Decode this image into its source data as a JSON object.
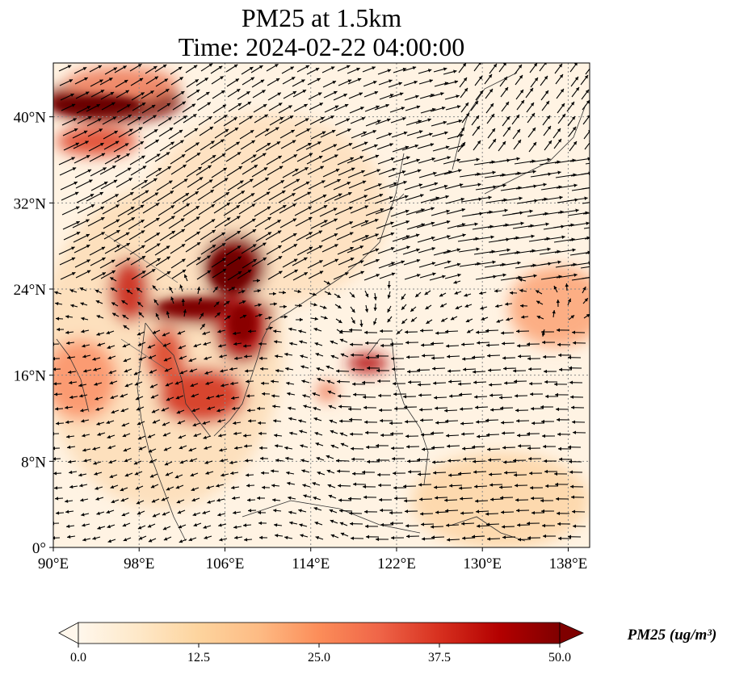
{
  "title": {
    "line1": "PM25 at 1.5km",
    "line2": "Time: 2024-02-22 04:00:00"
  },
  "map": {
    "lon_range": [
      90,
      140
    ],
    "lat_range": [
      0,
      45
    ],
    "x_ticks": [
      "90°E",
      "98°E",
      "106°E",
      "114°E",
      "122°E",
      "130°E",
      "138°E"
    ],
    "y_ticks": [
      "0°",
      "8°N",
      "16°N",
      "24°N",
      "32°N",
      "40°N"
    ],
    "x_tick_values": [
      90,
      98,
      106,
      114,
      122,
      130,
      138
    ],
    "y_tick_values": [
      0,
      8,
      16,
      24,
      32,
      40
    ],
    "gridlines": "dotted",
    "field": "PM25",
    "vectors": "wind arrows"
  },
  "colorbar": {
    "label": "PM25 (ug/m³)",
    "min": 0.0,
    "max": 50.0,
    "tick_labels": [
      "0.0",
      "12.5",
      "25.0",
      "37.5",
      "50.0"
    ],
    "extend": "both",
    "colormap": "OrRd",
    "colors": [
      "#fff7ec",
      "#fee8c8",
      "#fdd49e",
      "#fdbb84",
      "#fc8d59",
      "#ef6548",
      "#d7301f",
      "#b30000",
      "#7f0000"
    ]
  },
  "colors": {
    "coastline": "#333333",
    "arrow": "#000000",
    "grid": "#888888"
  }
}
